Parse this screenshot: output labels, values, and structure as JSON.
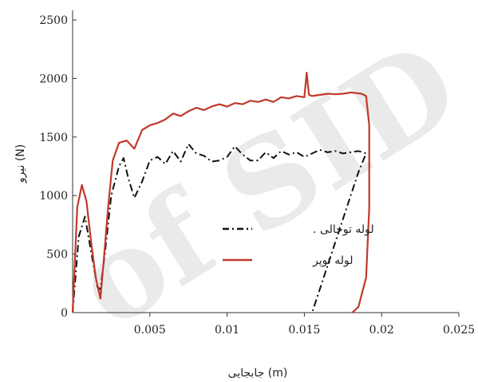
{
  "chart_data": {
    "type": "line",
    "title": "",
    "xlabel": "جابجایی (m)",
    "ylabel": "نیرو (N)",
    "xlim": [
      0,
      0.025
    ],
    "ylim": [
      0,
      2500
    ],
    "xticks": [
      {
        "value": 0.005,
        "label": "0.005"
      },
      {
        "value": 0.01,
        "label": "0.01"
      },
      {
        "value": 0.015,
        "label": "0.015"
      },
      {
        "value": 0.02,
        "label": "0.02"
      },
      {
        "value": 0.025,
        "label": "0.025"
      }
    ],
    "yticks": [
      {
        "value": 0,
        "label": "0"
      },
      {
        "value": 500,
        "label": "500"
      },
      {
        "value": 1000,
        "label": "1000"
      },
      {
        "value": 1500,
        "label": "1500"
      },
      {
        "value": 2000,
        "label": "2000"
      },
      {
        "value": 2500,
        "label": "2500"
      }
    ],
    "grid": false,
    "legend_position": "center",
    "watermark": "of SID",
    "series": [
      {
        "name": "لوله توخالی .",
        "color": "#111111",
        "style": "dash-dot",
        "x": [
          0,
          0.0004,
          0.0008,
          0.0012,
          0.0016,
          0.0018,
          0.0021,
          0.0025,
          0.003,
          0.0033,
          0.0036,
          0.004,
          0.0045,
          0.005,
          0.0055,
          0.006,
          0.0065,
          0.007,
          0.0075,
          0.008,
          0.0085,
          0.009,
          0.0095,
          0.01,
          0.0105,
          0.011,
          0.0115,
          0.012,
          0.0125,
          0.013,
          0.0135,
          0.014,
          0.0145,
          0.015,
          0.0155,
          0.016,
          0.0165,
          0.017,
          0.0175,
          0.018,
          0.0185,
          0.019,
          0.0185,
          0.018,
          0.0175,
          0.017,
          0.0165,
          0.016,
          0.0155
        ],
        "y": [
          0,
          650,
          820,
          520,
          220,
          200,
          520,
          1000,
          1250,
          1320,
          1150,
          980,
          1120,
          1300,
          1330,
          1270,
          1380,
          1290,
          1440,
          1360,
          1340,
          1290,
          1300,
          1330,
          1420,
          1350,
          1300,
          1300,
          1370,
          1320,
          1380,
          1350,
          1370,
          1330,
          1360,
          1390,
          1370,
          1380,
          1360,
          1370,
          1380,
          1360,
          1200,
          1000,
          800,
          600,
          400,
          200,
          0
        ]
      },
      {
        "name": "لوله توپر",
        "color": "#c0392b",
        "style": "solid",
        "x": [
          0,
          0.0003,
          0.0006,
          0.0009,
          0.0012,
          0.0015,
          0.0018,
          0.002,
          0.0023,
          0.0026,
          0.003,
          0.0035,
          0.004,
          0.0045,
          0.005,
          0.0055,
          0.006,
          0.0065,
          0.007,
          0.0075,
          0.008,
          0.0085,
          0.009,
          0.0095,
          0.01,
          0.0105,
          0.011,
          0.0115,
          0.012,
          0.0125,
          0.013,
          0.0135,
          0.014,
          0.0145,
          0.015,
          0.01515,
          0.0153,
          0.0155,
          0.016,
          0.0165,
          0.017,
          0.0175,
          0.018,
          0.0184,
          0.0187,
          0.019,
          0.0192,
          0.0192,
          0.019,
          0.0185,
          0.0181
        ],
        "y": [
          0,
          900,
          1090,
          950,
          600,
          300,
          120,
          420,
          900,
          1300,
          1450,
          1470,
          1400,
          1560,
          1600,
          1620,
          1650,
          1700,
          1680,
          1720,
          1750,
          1730,
          1760,
          1780,
          1760,
          1790,
          1780,
          1810,
          1800,
          1820,
          1800,
          1840,
          1830,
          1850,
          1840,
          2050,
          1860,
          1850,
          1860,
          1870,
          1865,
          1870,
          1880,
          1875,
          1870,
          1850,
          1600,
          900,
          300,
          50,
          0
        ]
      }
    ]
  }
}
